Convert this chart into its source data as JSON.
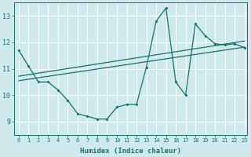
{
  "xlabel": "Humidex (Indice chaleur)",
  "ylabel": "",
  "bg_color": "#ceeaec",
  "grid_color": "#b0d8da",
  "line_color": "#1a6e6a",
  "xlim": [
    -0.5,
    23.3
  ],
  "ylim": [
    8.5,
    13.5
  ],
  "xticks": [
    0,
    1,
    2,
    3,
    4,
    5,
    6,
    7,
    8,
    9,
    10,
    11,
    12,
    13,
    14,
    15,
    16,
    17,
    18,
    19,
    20,
    21,
    22,
    23
  ],
  "yticks": [
    9,
    10,
    11,
    12,
    13
  ],
  "series1_x": [
    0,
    1,
    2,
    3,
    4,
    5,
    6,
    7,
    8,
    9,
    10,
    11,
    12,
    13,
    14,
    15,
    16,
    17,
    18,
    19,
    20,
    21,
    22,
    23
  ],
  "series1_y": [
    11.7,
    11.1,
    10.5,
    10.5,
    10.2,
    9.8,
    9.3,
    9.2,
    9.1,
    9.1,
    9.55,
    9.65,
    9.65,
    11.05,
    12.8,
    13.3,
    10.5,
    10.0,
    12.7,
    12.25,
    11.95,
    11.9,
    11.95,
    11.8
  ],
  "trend1_x": [
    0,
    23
  ],
  "trend1_y": [
    10.55,
    11.82
  ],
  "trend2_x": [
    0,
    23
  ],
  "trend2_y": [
    10.72,
    12.05
  ]
}
